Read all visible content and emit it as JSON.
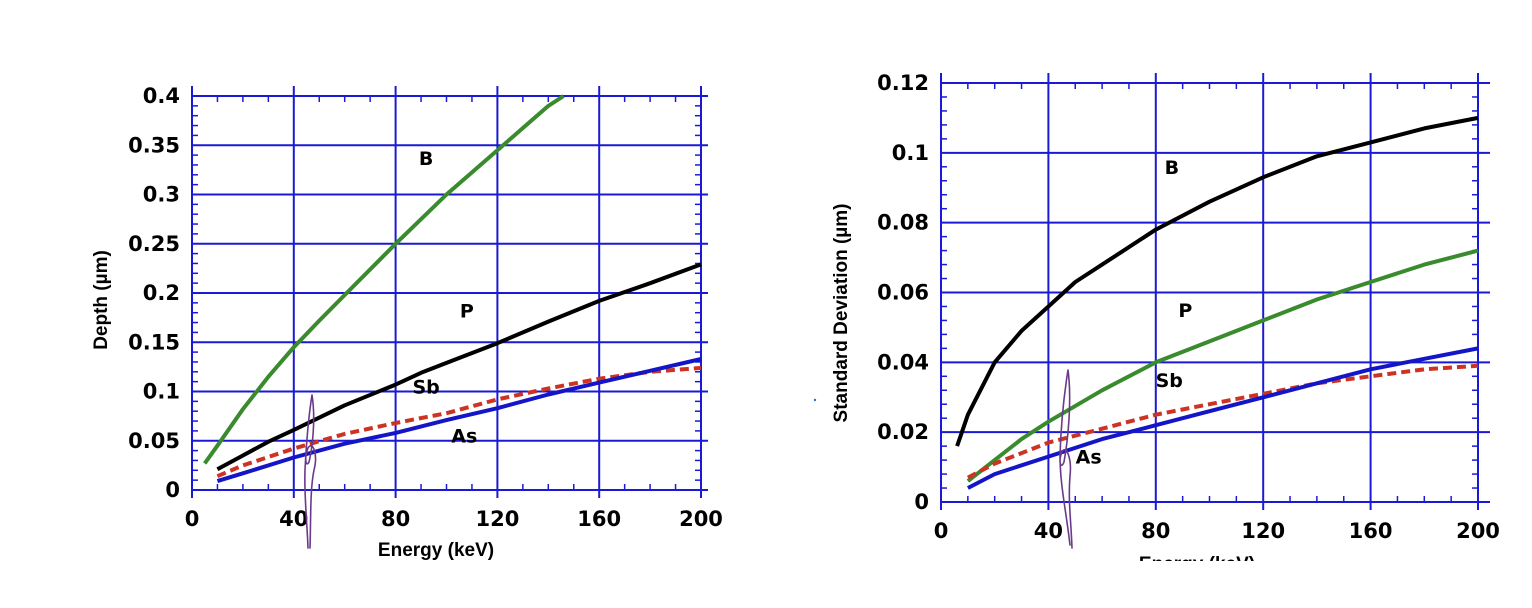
{
  "chart_data": [
    {
      "type": "line",
      "xlabel": "Energy (keV)",
      "ylabel": "Depth (µm)",
      "xlim": [
        0,
        200
      ],
      "ylim": [
        0,
        0.4
      ],
      "xticks": [
        "0",
        "40",
        "80",
        "120",
        "160",
        "200"
      ],
      "yticks": [
        "0",
        "0.05",
        "0.1",
        "0.15",
        "0.2",
        "0.25",
        "0.3",
        "0.35",
        "0.4"
      ],
      "grid": true,
      "series": [
        {
          "name": "B",
          "color": "#3a8a2e",
          "style": "solid",
          "points": [
            [
              5,
              0.027
            ],
            [
              10,
              0.045
            ],
            [
              20,
              0.082
            ],
            [
              30,
              0.115
            ],
            [
              40,
              0.145
            ],
            [
              50,
              0.172
            ],
            [
              60,
              0.198
            ],
            [
              80,
              0.25
            ],
            [
              100,
              0.3
            ],
            [
              120,
              0.345
            ],
            [
              140,
              0.39
            ],
            [
              146,
              0.4
            ]
          ]
        },
        {
          "name": "P",
          "color": "#000000",
          "style": "solid",
          "points": [
            [
              10,
              0.021
            ],
            [
              20,
              0.035
            ],
            [
              30,
              0.049
            ],
            [
              40,
              0.061
            ],
            [
              60,
              0.086
            ],
            [
              80,
              0.107
            ],
            [
              90,
              0.119
            ],
            [
              100,
              0.129
            ],
            [
              120,
              0.149
            ],
            [
              140,
              0.171
            ],
            [
              160,
              0.192
            ],
            [
              180,
              0.21
            ],
            [
              200,
              0.229
            ]
          ]
        },
        {
          "name": "Sb",
          "color": "#cc3322",
          "style": "dashed",
          "points": [
            [
              10,
              0.014
            ],
            [
              20,
              0.025
            ],
            [
              40,
              0.042
            ],
            [
              60,
              0.057
            ],
            [
              80,
              0.068
            ],
            [
              100,
              0.078
            ],
            [
              120,
              0.092
            ],
            [
              140,
              0.103
            ],
            [
              160,
              0.113
            ],
            [
              180,
              0.12
            ],
            [
              200,
              0.124
            ]
          ]
        },
        {
          "name": "As",
          "color": "#1515c8",
          "style": "solid",
          "points": [
            [
              10,
              0.009
            ],
            [
              20,
              0.017
            ],
            [
              40,
              0.033
            ],
            [
              60,
              0.047
            ],
            [
              80,
              0.058
            ],
            [
              100,
              0.071
            ],
            [
              120,
              0.083
            ],
            [
              140,
              0.097
            ],
            [
              160,
              0.109
            ],
            [
              180,
              0.121
            ],
            [
              200,
              0.133
            ]
          ]
        }
      ],
      "annotations": [
        {
          "text": "B",
          "x": 92,
          "y": 0.33
        },
        {
          "text": "P",
          "x": 108,
          "y": 0.175
        },
        {
          "text": "Sb",
          "x": 92,
          "y": 0.098
        },
        {
          "text": "As",
          "x": 107,
          "y": 0.048
        }
      ]
    },
    {
      "type": "line",
      "xlabel": "Energy (keV)",
      "ylabel": "Standard Deviation (µm)",
      "xlim": [
        0,
        200
      ],
      "ylim": [
        0,
        0.12
      ],
      "xticks": [
        "0",
        "40",
        "80",
        "120",
        "160",
        "200"
      ],
      "yticks": [
        "0",
        "0.02",
        "0.04",
        "0.06",
        "0.08",
        "0.1",
        "0.12"
      ],
      "grid": true,
      "series": [
        {
          "name": "B",
          "color": "#000000",
          "style": "solid",
          "points": [
            [
              6,
              0.016
            ],
            [
              10,
              0.025
            ],
            [
              20,
              0.04
            ],
            [
              30,
              0.049
            ],
            [
              40,
              0.056
            ],
            [
              50,
              0.063
            ],
            [
              60,
              0.068
            ],
            [
              80,
              0.078
            ],
            [
              100,
              0.086
            ],
            [
              120,
              0.093
            ],
            [
              140,
              0.099
            ],
            [
              160,
              0.103
            ],
            [
              180,
              0.107
            ],
            [
              200,
              0.11
            ]
          ]
        },
        {
          "name": "P",
          "color": "#3a8a2e",
          "style": "solid",
          "points": [
            [
              10,
              0.006
            ],
            [
              20,
              0.012
            ],
            [
              30,
              0.018
            ],
            [
              40,
              0.023
            ],
            [
              60,
              0.032
            ],
            [
              80,
              0.04
            ],
            [
              100,
              0.046
            ],
            [
              120,
              0.052
            ],
            [
              140,
              0.058
            ],
            [
              160,
              0.063
            ],
            [
              180,
              0.068
            ],
            [
              200,
              0.072
            ]
          ]
        },
        {
          "name": "Sb",
          "color": "#cc3322",
          "style": "dashed",
          "points": [
            [
              10,
              0.007
            ],
            [
              20,
              0.011
            ],
            [
              40,
              0.017
            ],
            [
              60,
              0.021
            ],
            [
              80,
              0.025
            ],
            [
              100,
              0.028
            ],
            [
              120,
              0.031
            ],
            [
              140,
              0.034
            ],
            [
              160,
              0.036
            ],
            [
              180,
              0.038
            ],
            [
              200,
              0.039
            ]
          ]
        },
        {
          "name": "As",
          "color": "#1515c8",
          "style": "solid",
          "points": [
            [
              10,
              0.004
            ],
            [
              20,
              0.008
            ],
            [
              40,
              0.013
            ],
            [
              60,
              0.018
            ],
            [
              80,
              0.022
            ],
            [
              100,
              0.026
            ],
            [
              120,
              0.03
            ],
            [
              140,
              0.034
            ],
            [
              160,
              0.038
            ],
            [
              180,
              0.041
            ],
            [
              200,
              0.044
            ]
          ]
        }
      ],
      "annotations": [
        {
          "text": "B",
          "x": 86,
          "y": 0.094
        },
        {
          "text": "P",
          "x": 91,
          "y": 0.053
        },
        {
          "text": "Sb",
          "x": 85,
          "y": 0.033
        },
        {
          "text": "As",
          "x": 55,
          "y": 0.011
        }
      ]
    }
  ]
}
